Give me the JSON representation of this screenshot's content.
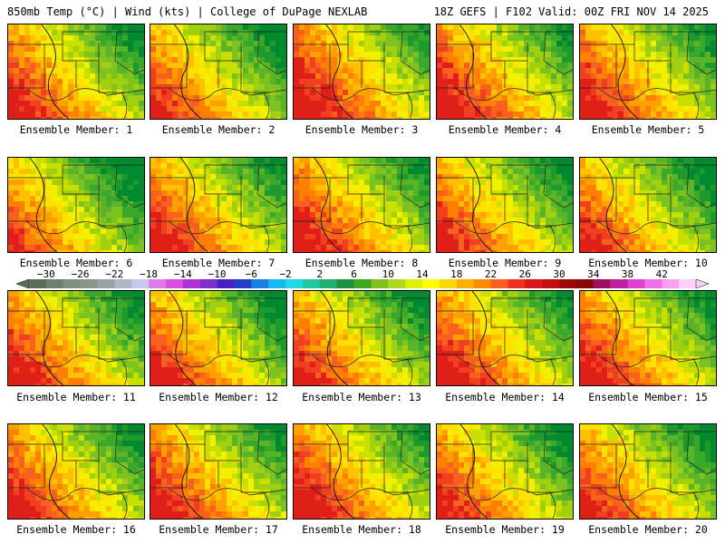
{
  "header": {
    "left": "850mb Temp (°C) | Wind (kts) | College of DuPage NEXLAB",
    "right": "18Z GEFS | F102 Valid: 00Z FRI NOV 14 2025"
  },
  "members": [
    {
      "label": "Ensemble Member: 1",
      "warmth": 0.55
    },
    {
      "label": "Ensemble Member: 2",
      "warmth": 0.45
    },
    {
      "label": "Ensemble Member: 3",
      "warmth": 0.7
    },
    {
      "label": "Ensemble Member: 4",
      "warmth": 0.65
    },
    {
      "label": "Ensemble Member: 5",
      "warmth": 0.6
    },
    {
      "label": "Ensemble Member: 6",
      "warmth": 0.35
    },
    {
      "label": "Ensemble Member: 7",
      "warmth": 0.55
    },
    {
      "label": "Ensemble Member: 8",
      "warmth": 0.6
    },
    {
      "label": "Ensemble Member: 9",
      "warmth": 0.5
    },
    {
      "label": "Ensemble Member: 10",
      "warmth": 0.45
    },
    {
      "label": "Ensemble Member: 11",
      "warmth": 0.55
    },
    {
      "label": "Ensemble Member: 12",
      "warmth": 0.5
    },
    {
      "label": "Ensemble Member: 13",
      "warmth": 0.5
    },
    {
      "label": "Ensemble Member: 14",
      "warmth": 0.6
    },
    {
      "label": "Ensemble Member: 15",
      "warmth": 0.6
    },
    {
      "label": "Ensemble Member: 16",
      "warmth": 0.55
    },
    {
      "label": "Ensemble Member: 17",
      "warmth": 0.6
    },
    {
      "label": "Ensemble Member: 18",
      "warmth": 0.65
    },
    {
      "label": "Ensemble Member: 19",
      "warmth": 0.5
    },
    {
      "label": "Ensemble Member: 20",
      "warmth": 0.5
    }
  ],
  "colorbar": {
    "tick_labels": [
      "-30",
      "-26",
      "-22",
      "-18",
      "-14",
      "-10",
      "-6",
      "-2",
      "2",
      "6",
      "10",
      "14",
      "18",
      "22",
      "26",
      "30",
      "34",
      "38",
      "42"
    ],
    "colors": [
      "#5a6e5a",
      "#6e806e",
      "#7f8f80",
      "#8a958c",
      "#9aa2a6",
      "#b0b8c8",
      "#c8c8ec",
      "#e07ae8",
      "#d850e0",
      "#b030d0",
      "#8030c8",
      "#4a20c0",
      "#2040c8",
      "#1880e0",
      "#18b8f0",
      "#20d8e8",
      "#20c8a0",
      "#20b070",
      "#209040",
      "#40a820",
      "#80c020",
      "#b0d820",
      "#e0f000",
      "#ffff00",
      "#ffd800",
      "#ffb000",
      "#ff8c00",
      "#ff6020",
      "#f03020",
      "#d81818",
      "#c01010",
      "#a00808",
      "#880808",
      "#a01060",
      "#c020a0",
      "#e040d0",
      "#f070e8",
      "#f8a0f0",
      "#ffd0f8"
    ]
  },
  "field_palette": [
    "#008a30",
    "#1e9a2c",
    "#3aa82a",
    "#5ab428",
    "#7cc220",
    "#a0d010",
    "#c8e000",
    "#f0f000",
    "#ffe000",
    "#ffc000",
    "#ffa000",
    "#ff8000",
    "#f86020",
    "#f04020",
    "#e02018"
  ]
}
